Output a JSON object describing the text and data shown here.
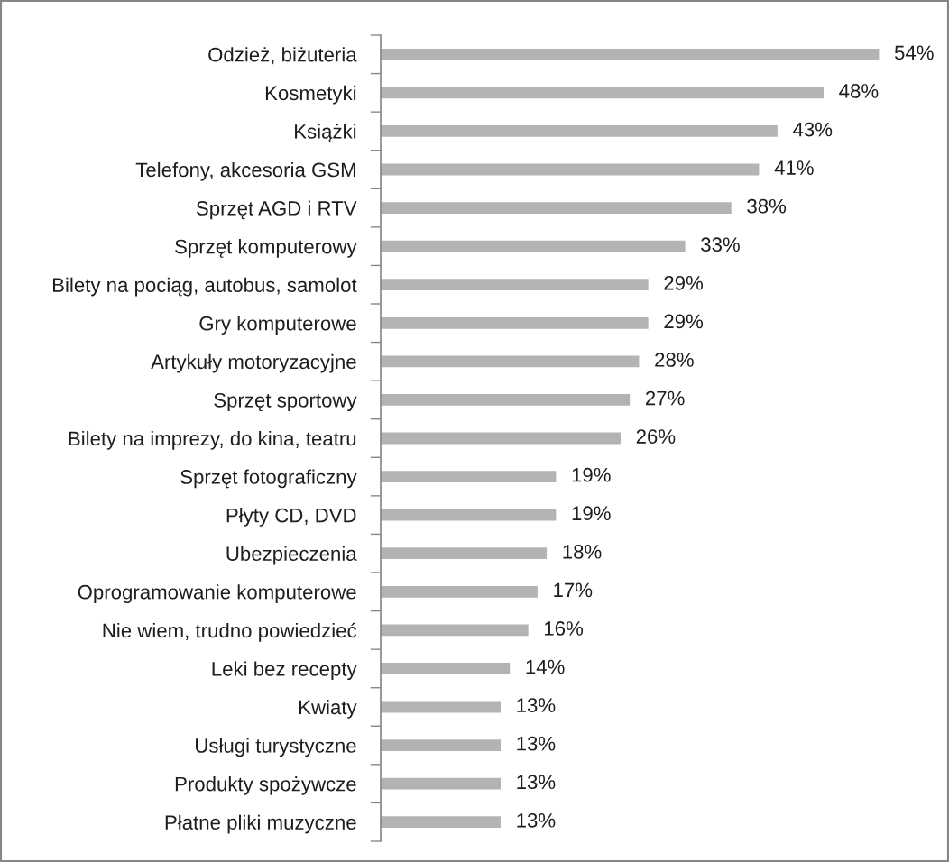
{
  "chart_data": {
    "type": "bar",
    "orientation": "horizontal",
    "categories": [
      "Odzież, biżuteria",
      "Kosmetyki",
      "Książki",
      "Telefony, akcesoria GSM",
      "Sprzęt AGD i RTV",
      "Sprzęt komputerowy",
      "Bilety na pociąg, autobus, samolot",
      "Gry komputerowe",
      "Artykuły motoryzacyjne",
      "Sprzęt sportowy",
      "Bilety na imprezy, do kina, teatru",
      "Sprzęt fotograficzny",
      "Płyty CD, DVD",
      "Ubezpieczenia",
      "Oprogramowanie komputerowe",
      "Nie wiem, trudno powiedzieć",
      "Leki bez recepty",
      "Kwiaty",
      "Usługi turystyczne",
      "Produkty spożywcze",
      "Płatne pliki muzyczne"
    ],
    "values": [
      54,
      48,
      43,
      41,
      38,
      33,
      29,
      29,
      28,
      27,
      26,
      19,
      19,
      18,
      17,
      16,
      14,
      13,
      13,
      13,
      13
    ],
    "value_labels": [
      "54%",
      "48%",
      "43%",
      "41%",
      "38%",
      "33%",
      "29%",
      "29%",
      "28%",
      "27%",
      "26%",
      "19%",
      "19%",
      "18%",
      "17%",
      "16%",
      "14%",
      "13%",
      "13%",
      "13%",
      "13%"
    ],
    "color": "#b3b3b3",
    "tick_labels": "y"
  }
}
